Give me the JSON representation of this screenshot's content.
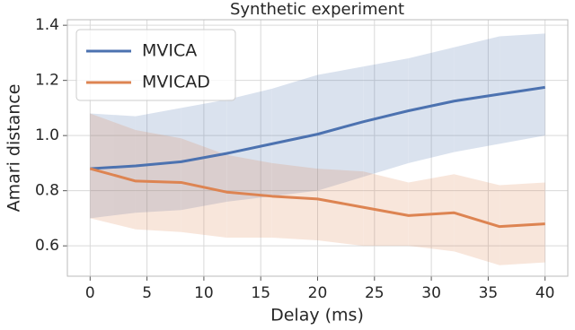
{
  "chart_data": {
    "type": "line",
    "title": "Synthetic experiment",
    "x_label": "Delay (ms)",
    "y_label": "Amari distance",
    "x": [
      0,
      4,
      8,
      12,
      16,
      20,
      24,
      28,
      32,
      36,
      40
    ],
    "series": [
      {
        "name": "MVICA",
        "color": "#4c72b0",
        "values": [
          0.88,
          0.89,
          0.905,
          0.935,
          0.97,
          1.005,
          1.05,
          1.09,
          1.125,
          1.15,
          1.175
        ],
        "upper": [
          1.08,
          1.07,
          1.1,
          1.13,
          1.17,
          1.22,
          1.25,
          1.28,
          1.32,
          1.36,
          1.37
        ],
        "lower": [
          0.7,
          0.72,
          0.73,
          0.76,
          0.78,
          0.8,
          0.85,
          0.9,
          0.94,
          0.97,
          1.0
        ]
      },
      {
        "name": "MVICAD",
        "color": "#dd8452",
        "values": [
          0.88,
          0.835,
          0.83,
          0.795,
          0.78,
          0.77,
          0.74,
          0.71,
          0.72,
          0.67,
          0.68
        ],
        "upper": [
          1.08,
          1.02,
          0.99,
          0.93,
          0.9,
          0.88,
          0.87,
          0.83,
          0.86,
          0.82,
          0.83
        ],
        "lower": [
          0.7,
          0.66,
          0.65,
          0.63,
          0.63,
          0.62,
          0.6,
          0.6,
          0.58,
          0.53,
          0.54
        ]
      }
    ],
    "xlim": [
      -2,
      42
    ],
    "ylim": [
      0.49,
      1.42
    ],
    "xticks": [
      0,
      5,
      10,
      15,
      20,
      25,
      30,
      35,
      40
    ],
    "yticks": [
      0.6,
      0.8,
      {
        "value": 1,
        "label": "1.0"
      },
      1.2,
      1.4
    ],
    "grid": true,
    "legend": "upper left"
  }
}
